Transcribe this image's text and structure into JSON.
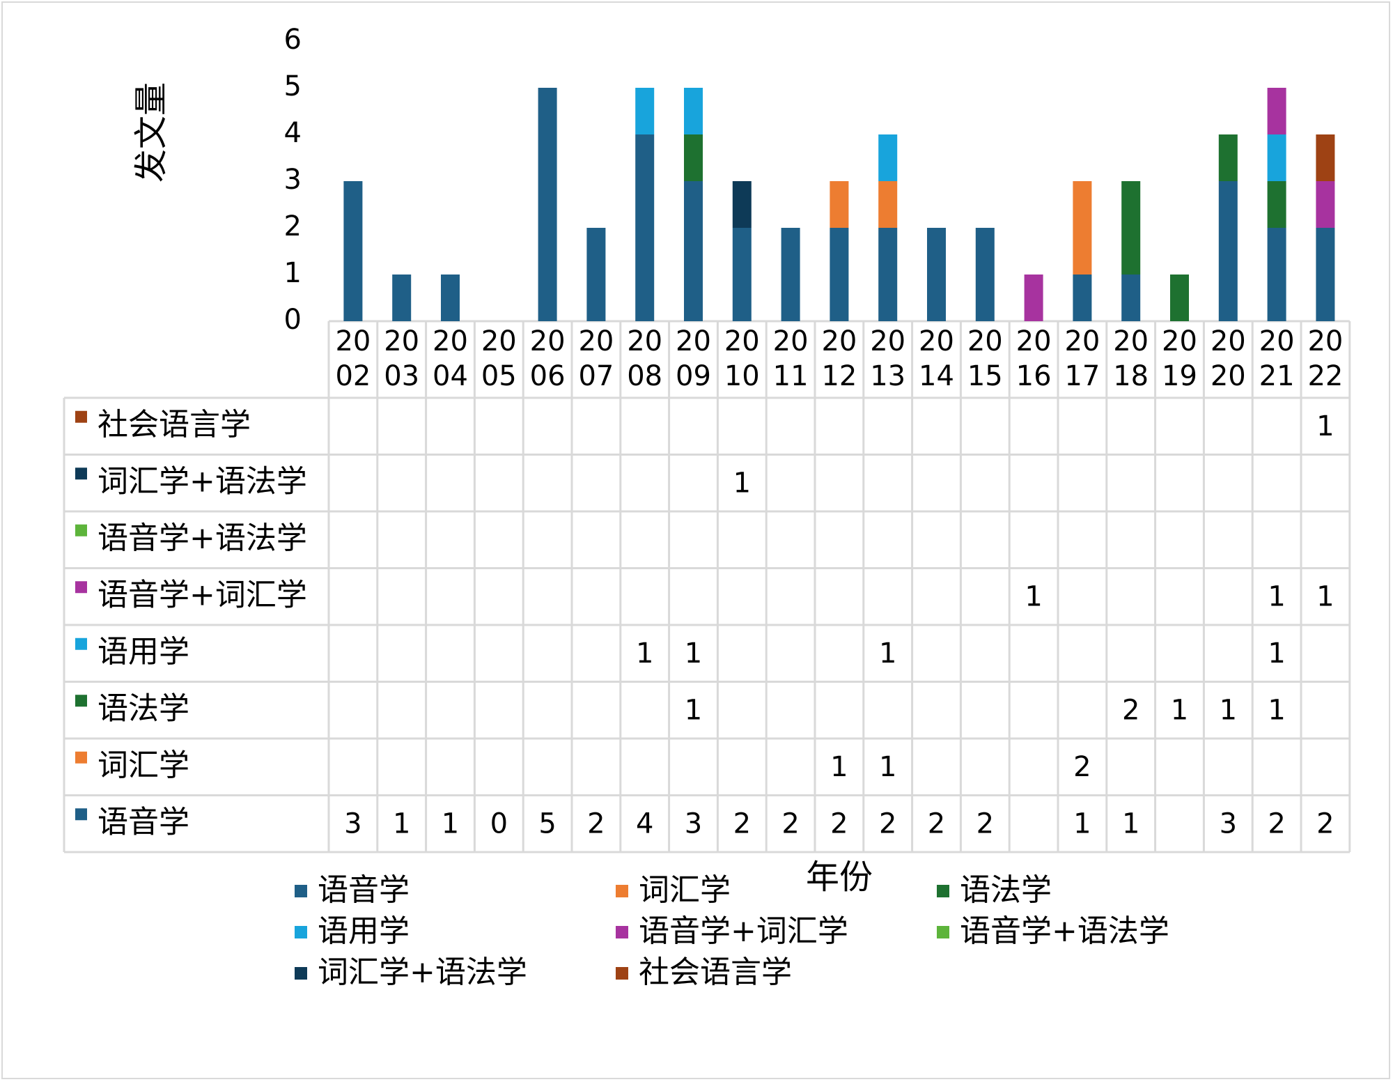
{
  "chart_data": {
    "type": "bar",
    "stacked": true,
    "ylabel": "发文量",
    "xlabel": "年份",
    "ylim": [
      0,
      6
    ],
    "yticks": [
      "0",
      "1",
      "2",
      "3",
      "4",
      "5",
      "6"
    ],
    "categories": [
      "2002",
      "2003",
      "2004",
      "2005",
      "2006",
      "2007",
      "2008",
      "2009",
      "2010",
      "2011",
      "2012",
      "2013",
      "2014",
      "2015",
      "2016",
      "2017",
      "2018",
      "2019",
      "2020",
      "2021",
      "2022"
    ],
    "category_lines": [
      [
        "20",
        "02"
      ],
      [
        "20",
        "03"
      ],
      [
        "20",
        "04"
      ],
      [
        "20",
        "05"
      ],
      [
        "20",
        "06"
      ],
      [
        "20",
        "07"
      ],
      [
        "20",
        "08"
      ],
      [
        "20",
        "09"
      ],
      [
        "20",
        "10"
      ],
      [
        "20",
        "11"
      ],
      [
        "20",
        "12"
      ],
      [
        "20",
        "13"
      ],
      [
        "20",
        "14"
      ],
      [
        "20",
        "15"
      ],
      [
        "20",
        "16"
      ],
      [
        "20",
        "17"
      ],
      [
        "20",
        "18"
      ],
      [
        "20",
        "19"
      ],
      [
        "20",
        "20"
      ],
      [
        "20",
        "21"
      ],
      [
        "20",
        "22"
      ]
    ],
    "series": [
      {
        "name": "语音学",
        "color": "#1f5f87",
        "values": [
          3,
          1,
          1,
          0,
          5,
          2,
          4,
          3,
          2,
          2,
          2,
          2,
          2,
          2,
          null,
          1,
          1,
          null,
          3,
          2,
          2
        ]
      },
      {
        "name": "词汇学",
        "color": "#ed7d31",
        "values": [
          null,
          null,
          null,
          null,
          null,
          null,
          null,
          null,
          null,
          null,
          1,
          1,
          null,
          null,
          null,
          2,
          null,
          null,
          null,
          null,
          null
        ]
      },
      {
        "name": "语法学",
        "color": "#1e7130",
        "values": [
          null,
          null,
          null,
          null,
          null,
          null,
          null,
          1,
          null,
          null,
          null,
          null,
          null,
          null,
          null,
          null,
          2,
          1,
          1,
          1,
          null
        ]
      },
      {
        "name": "语用学",
        "color": "#18a4dc",
        "values": [
          null,
          null,
          null,
          null,
          null,
          null,
          1,
          1,
          null,
          null,
          null,
          1,
          null,
          null,
          null,
          null,
          null,
          null,
          null,
          1,
          null
        ]
      },
      {
        "name": "语音学+词汇学",
        "color": "#a7339f",
        "values": [
          null,
          null,
          null,
          null,
          null,
          null,
          null,
          null,
          null,
          null,
          null,
          null,
          null,
          null,
          1,
          null,
          null,
          null,
          null,
          1,
          1
        ]
      },
      {
        "name": "语音学+语法学",
        "color": "#5db43b",
        "values": [
          null,
          null,
          null,
          null,
          null,
          null,
          null,
          null,
          null,
          null,
          null,
          null,
          null,
          null,
          null,
          null,
          null,
          null,
          null,
          null,
          null
        ]
      },
      {
        "name": "词汇学+语法学",
        "color": "#0e3a57",
        "values": [
          null,
          null,
          null,
          null,
          null,
          null,
          null,
          null,
          1,
          null,
          null,
          null,
          null,
          null,
          null,
          null,
          null,
          null,
          null,
          null,
          null
        ]
      },
      {
        "name": "社会语言学",
        "color": "#9e4214",
        "values": [
          null,
          null,
          null,
          null,
          null,
          null,
          null,
          null,
          null,
          null,
          null,
          null,
          null,
          null,
          null,
          null,
          null,
          null,
          null,
          null,
          1
        ]
      }
    ],
    "table_row_order": [
      "社会语言学",
      "词汇学+语法学",
      "语音学+语法学",
      "语音学+词汇学",
      "语用学",
      "语法学",
      "词汇学",
      "语音学"
    ],
    "legend": {
      "placement": "bottom",
      "entries": [
        "语音学",
        "词汇学",
        "语法学",
        "语用学",
        "语音学+词汇学",
        "语音学+语法学",
        "词汇学+语法学",
        "社会语言学"
      ]
    }
  }
}
